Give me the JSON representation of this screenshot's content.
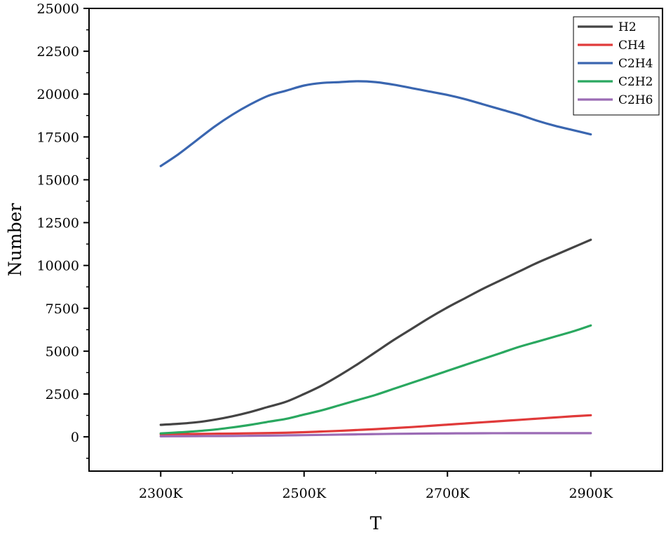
{
  "chart_data": {
    "type": "line",
    "title": "",
    "xlabel": "T",
    "ylabel": "Number",
    "categories": [
      "2300K",
      "2500K",
      "2700K",
      "2900K"
    ],
    "x": [
      2300,
      2325,
      2350,
      2375,
      2400,
      2425,
      2450,
      2475,
      2500,
      2525,
      2550,
      2575,
      2600,
      2625,
      2650,
      2675,
      2700,
      2725,
      2750,
      2775,
      2800,
      2825,
      2850,
      2875,
      2900
    ],
    "xlim": [
      2200,
      3000
    ],
    "xticks": [
      2300,
      2500,
      2700,
      2900
    ],
    "ylim": [
      -2000,
      25000
    ],
    "yticks": [
      0,
      2500,
      5000,
      7500,
      10000,
      12500,
      15000,
      17500,
      20000,
      22500,
      25000
    ],
    "ytick_labels": [
      "0",
      "2500",
      "5000",
      "7500",
      "10000",
      "12500",
      "15000",
      "17500",
      "20000",
      "22500",
      "25000"
    ],
    "series": [
      {
        "name": "H2",
        "color": "#444444",
        "values": [
          700,
          760,
          850,
          1000,
          1200,
          1450,
          1750,
          2050,
          2500,
          3000,
          3600,
          4250,
          4950,
          5650,
          6300,
          6950,
          7550,
          8100,
          8650,
          9150,
          9650,
          10150,
          10600,
          11050,
          11500
        ]
      },
      {
        "name": "CH4",
        "color": "#e03a3a",
        "values": [
          150,
          160,
          170,
          180,
          190,
          205,
          220,
          240,
          270,
          310,
          350,
          400,
          450,
          510,
          570,
          640,
          710,
          780,
          850,
          920,
          990,
          1060,
          1130,
          1200,
          1260
        ]
      },
      {
        "name": "C2H4",
        "color": "#3a66b0",
        "values": [
          15800,
          16500,
          17300,
          18100,
          18800,
          19400,
          19900,
          20200,
          20500,
          20650,
          20700,
          20750,
          20700,
          20550,
          20350,
          20150,
          19950,
          19700,
          19400,
          19100,
          18800,
          18450,
          18150,
          17900,
          17650
        ]
      },
      {
        "name": "C2H2",
        "color": "#2aa860",
        "values": [
          200,
          260,
          330,
          420,
          550,
          700,
          880,
          1050,
          1300,
          1550,
          1850,
          2150,
          2450,
          2800,
          3150,
          3500,
          3850,
          4200,
          4550,
          4900,
          5250,
          5550,
          5850,
          6150,
          6500
        ]
      },
      {
        "name": "C2H6",
        "color": "#9b6bb5",
        "values": [
          30,
          35,
          40,
          45,
          50,
          60,
          70,
          85,
          100,
          115,
          130,
          145,
          160,
          175,
          185,
          195,
          200,
          205,
          210,
          212,
          214,
          215,
          215,
          214,
          213
        ]
      }
    ],
    "legend": {
      "position": "top-right"
    },
    "grid": false
  }
}
